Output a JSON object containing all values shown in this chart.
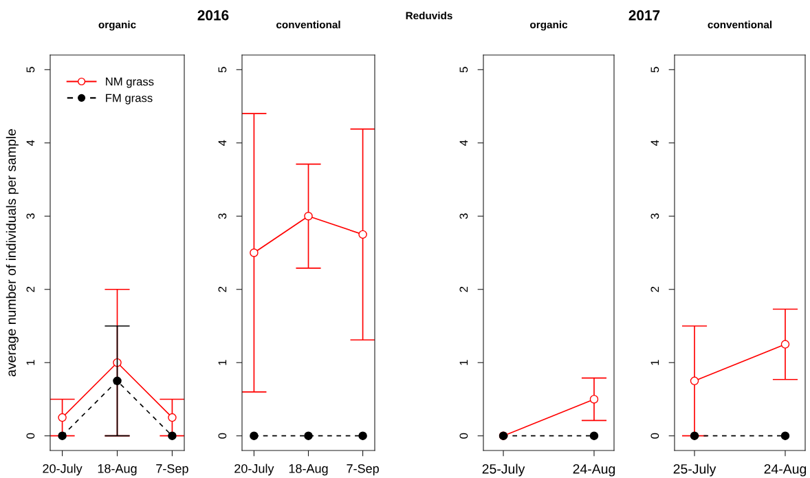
{
  "chart_data": [
    {
      "type": "line",
      "title": "organic",
      "annotations": [
        "2016"
      ],
      "ylabel": "average number of individuals per sample",
      "categories": [
        "20-July",
        "18-Aug",
        "7-Sep"
      ],
      "ylim": [
        -0.2,
        5.2
      ],
      "yticks": [
        0,
        1,
        2,
        3,
        4,
        5
      ],
      "legend": "top left",
      "grid": false,
      "series": [
        {
          "name": "NM grass",
          "color": "#ff0000",
          "marker": "circle",
          "line_style": "solid",
          "values": [
            0.25,
            1.0,
            0.25
          ],
          "errors": [
            0.25,
            1,
            0.25
          ]
        },
        {
          "name": "FM grass",
          "color": "#000000",
          "marker": "circle",
          "line_style": "dashed",
          "values": [
            0,
            0.75,
            0
          ],
          "errors": [
            null,
            0.75,
            null
          ]
        }
      ]
    },
    {
      "type": "line",
      "title": "conventional",
      "annotations": [
        "Reduvids"
      ],
      "categories": [
        "20-July",
        "18-Aug",
        "7-Sep"
      ],
      "ylim": [
        -0.2,
        5.2
      ],
      "yticks": [
        0,
        1,
        2,
        3,
        4,
        5
      ],
      "legend": false,
      "grid": false,
      "series": [
        {
          "color": "#ff0000",
          "marker": "circle",
          "line_style": "solid",
          "values": [
            2.5,
            3.0,
            2.75
          ],
          "errors": [
            1.9,
            0.71,
            1.44
          ]
        },
        {
          "color": "#000000",
          "marker": "circle",
          "line_style": "dashed",
          "values": [
            0,
            0,
            0
          ]
        }
      ]
    },
    {
      "type": "line",
      "title": "organic",
      "annotations": [
        "2017"
      ],
      "categories": [
        "25-July",
        "24-Aug"
      ],
      "ylim": [
        -0.2,
        5.2
      ],
      "yticks": [
        0,
        1,
        2,
        3,
        4,
        5
      ],
      "legend": false,
      "grid": false,
      "series": [
        {
          "color": "#ff0000",
          "marker": "circle",
          "line_style": "solid",
          "values": [
            0,
            0.5
          ],
          "errors": [
            null,
            0.29
          ]
        },
        {
          "color": "#000000",
          "marker": "circle",
          "line_style": "dashed",
          "values": [
            0,
            0
          ]
        }
      ]
    },
    {
      "type": "line",
      "title": "conventional",
      "categories": [
        "25-July",
        "24-Aug"
      ],
      "ylim": [
        -0.2,
        5.2
      ],
      "yticks": [
        0,
        1,
        2,
        3,
        4,
        5
      ],
      "legend": false,
      "grid": false,
      "series": [
        {
          "color": "#ff0000",
          "marker": "circle",
          "line_style": "solid",
          "values": [
            0.75,
            1.25
          ],
          "errors": [
            0.75,
            0.48
          ]
        },
        {
          "color": "#000000",
          "marker": "circle",
          "line_style": "dashed",
          "values": [
            0,
            0
          ]
        }
      ]
    }
  ]
}
